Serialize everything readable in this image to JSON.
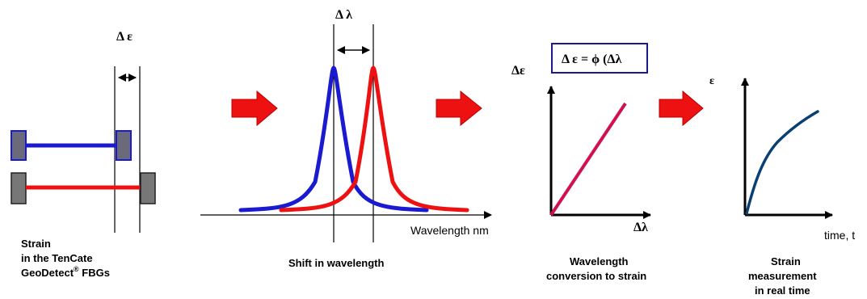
{
  "panel1": {
    "delta_label": "Δ ε",
    "caption_line1": "Strain",
    "caption_line2": "in the TenCate",
    "caption_line3_a": "GeoDetect",
    "caption_line3_sup": "®",
    "caption_line3_b": " FBGs"
  },
  "panel2": {
    "delta_label": "Δ λ",
    "x_axis_label": "Wavelength nm",
    "caption": "Shift in wavelength"
  },
  "panel3": {
    "formula": "Δ ε = ϕ (Δλ",
    "y_axis_label": "Δε",
    "x_axis_label": "Δλ",
    "caption_line1": "Wavelength",
    "caption_line2": "conversion to strain"
  },
  "panel4": {
    "y_axis_label": "ε",
    "x_axis_label": "time, t",
    "caption_line1": "Strain",
    "caption_line2": "measurement",
    "caption_line3": "in real time"
  },
  "colors": {
    "blue": "#1a1ad0",
    "red": "#ee1111",
    "grating": "#777777",
    "arrow": "#ee1111",
    "conversion_line": "#d01050",
    "strain_curve": "#0a3f73"
  }
}
